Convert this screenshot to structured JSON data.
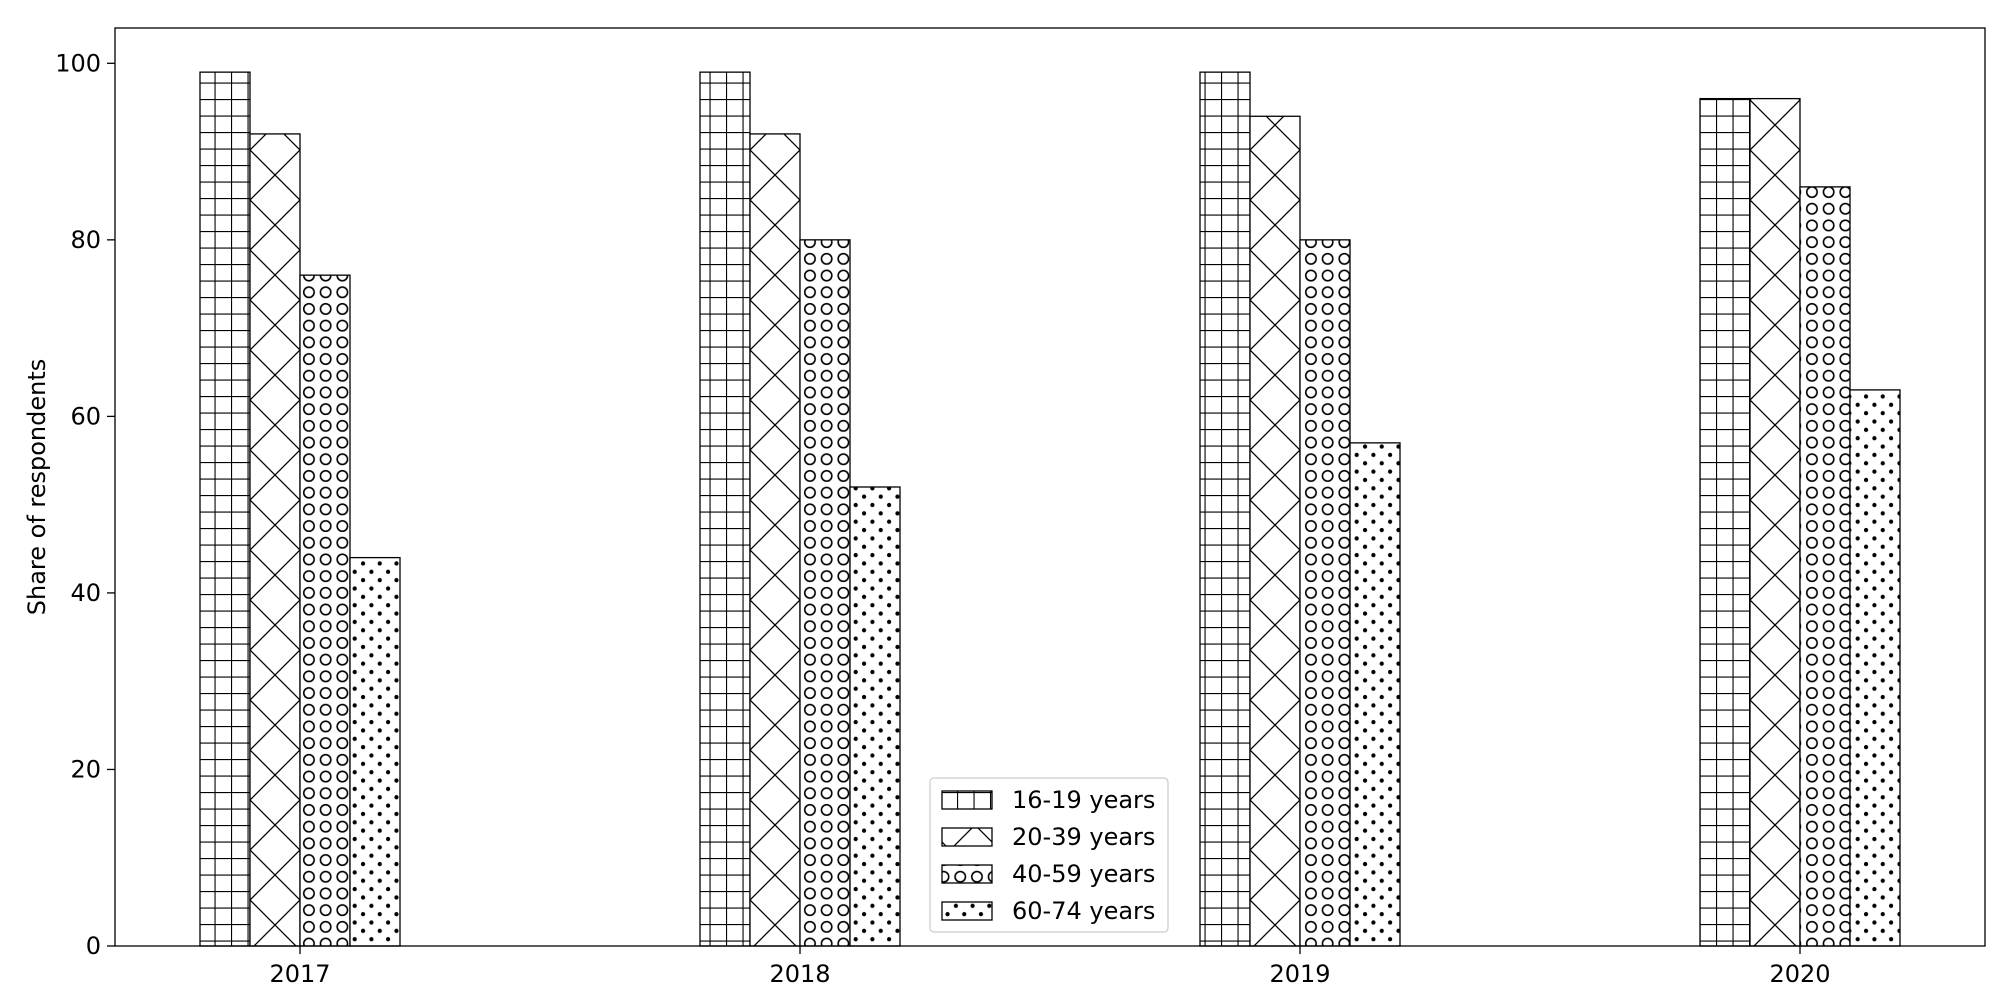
{
  "chart_data": {
    "type": "bar",
    "title": "",
    "xlabel": "",
    "ylabel": "Share of respondents",
    "ylim": [
      0,
      104
    ],
    "yticks": [
      0,
      20,
      40,
      60,
      80,
      100
    ],
    "grid": false,
    "legend_position": "bottom-center",
    "categories": [
      "2017",
      "2018",
      "2019",
      "2020"
    ],
    "series": [
      {
        "name": "16-19 years",
        "pattern": "grid-hatch",
        "values": [
          99,
          99,
          99,
          96
        ]
      },
      {
        "name": "20-39 years",
        "pattern": "cross-hatch",
        "values": [
          92,
          92,
          94,
          96
        ]
      },
      {
        "name": "40-59 years",
        "pattern": "circle-hatch",
        "values": [
          76,
          80,
          80,
          86
        ]
      },
      {
        "name": "60-74 years",
        "pattern": "dot-hatch",
        "values": [
          44,
          52,
          57,
          63
        ]
      }
    ],
    "colors": {
      "bar_fill": "#ffffff",
      "bar_edge": "#000000",
      "axis": "#000000"
    }
  }
}
